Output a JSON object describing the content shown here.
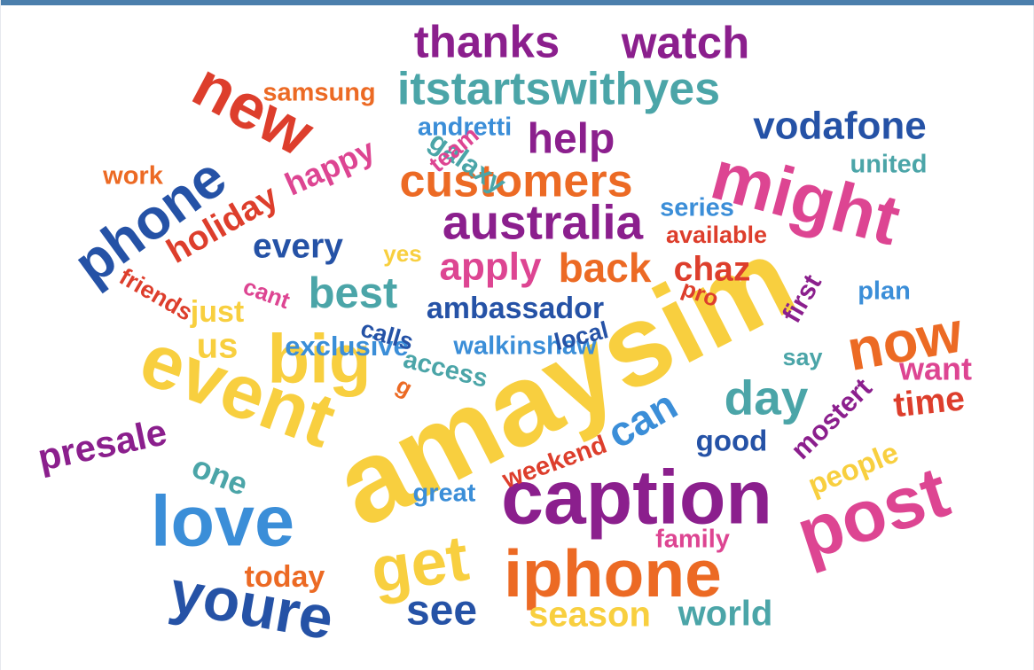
{
  "chart_data": {
    "type": "wordcloud",
    "palette": {
      "yellow": "#f8cf3f",
      "purple": "#8b1f8d",
      "teal": "#4ba5a8",
      "red": "#dd3e2c",
      "pink": "#dd4592",
      "orange": "#ec6a24",
      "blue": "#3b8ed8",
      "navy": "#2552a6"
    },
    "words": [
      {
        "text": "amaysim",
        "weight": 100,
        "color": "#f8cf3f",
        "rotate": -27
      },
      {
        "text": "event",
        "weight": 66,
        "color": "#f8cf3f",
        "rotate": 20
      },
      {
        "text": "caption",
        "weight": 66,
        "color": "#8b1f8d",
        "rotate": 0
      },
      {
        "text": "post",
        "weight": 63,
        "color": "#dd4592",
        "rotate": -18
      },
      {
        "text": "love",
        "weight": 62,
        "color": "#3b8ed8",
        "rotate": 0
      },
      {
        "text": "might",
        "weight": 61,
        "color": "#dd4592",
        "rotate": 15
      },
      {
        "text": "big",
        "weight": 60,
        "color": "#f8cf3f",
        "rotate": 0
      },
      {
        "text": "iphone",
        "weight": 58,
        "color": "#ec6a24",
        "rotate": 0
      },
      {
        "text": "get",
        "weight": 56,
        "color": "#f8cf3f",
        "rotate": -8
      },
      {
        "text": "new",
        "weight": 55,
        "color": "#dd3e2c",
        "rotate": 28
      },
      {
        "text": "youre",
        "weight": 52,
        "color": "#2552a6",
        "rotate": 10
      },
      {
        "text": "now",
        "weight": 50,
        "color": "#ec6a24",
        "rotate": -10
      },
      {
        "text": "phone",
        "weight": 49,
        "color": "#2552a6",
        "rotate": -36
      },
      {
        "text": "australia",
        "weight": 42,
        "color": "#8b1f8d",
        "rotate": 0
      },
      {
        "text": "day",
        "weight": 42,
        "color": "#4ba5a8",
        "rotate": 0
      },
      {
        "text": "itstartswithyes",
        "weight": 40,
        "color": "#4ba5a8",
        "rotate": 0
      },
      {
        "text": "customers",
        "weight": 40,
        "color": "#ec6a24",
        "rotate": 0
      },
      {
        "text": "watch",
        "weight": 39,
        "color": "#8b1f8d",
        "rotate": 0
      },
      {
        "text": "thanks",
        "weight": 39,
        "color": "#8b1f8d",
        "rotate": 0
      },
      {
        "text": "best",
        "weight": 38,
        "color": "#4ba5a8",
        "rotate": 0
      },
      {
        "text": "help",
        "weight": 37,
        "color": "#8b1f8d",
        "rotate": 0
      },
      {
        "text": "see",
        "weight": 37,
        "color": "#2552a6",
        "rotate": 0
      },
      {
        "text": "can",
        "weight": 36,
        "color": "#3b8ed8",
        "rotate": -30
      },
      {
        "text": "back",
        "weight": 35,
        "color": "#ec6a24",
        "rotate": 0
      },
      {
        "text": "apply",
        "weight": 34,
        "color": "#dd4592",
        "rotate": 0
      },
      {
        "text": "vodafone",
        "weight": 34,
        "color": "#2552a6",
        "rotate": 0
      },
      {
        "text": "presale",
        "weight": 32,
        "color": "#8b1f8d",
        "rotate": -12
      },
      {
        "text": "season",
        "weight": 31,
        "color": "#f8cf3f",
        "rotate": 0
      },
      {
        "text": "world",
        "weight": 31,
        "color": "#4ba5a8",
        "rotate": 0
      },
      {
        "text": "us",
        "weight": 31,
        "color": "#f8cf3f",
        "rotate": 0
      },
      {
        "text": "holiday",
        "weight": 30,
        "color": "#dd3e2c",
        "rotate": -30
      },
      {
        "text": "every",
        "weight": 30,
        "color": "#2552a6",
        "rotate": 0
      },
      {
        "text": "chaz",
        "weight": 30,
        "color": "#dd3e2c",
        "rotate": 0
      },
      {
        "text": "time",
        "weight": 30,
        "color": "#dd3e2c",
        "rotate": -6
      },
      {
        "text": "one",
        "weight": 28,
        "color": "#4ba5a8",
        "rotate": 22
      },
      {
        "text": "want",
        "weight": 28,
        "color": "#dd4592",
        "rotate": 0
      },
      {
        "text": "happy",
        "weight": 28,
        "color": "#dd4592",
        "rotate": -24
      },
      {
        "text": "ambassador",
        "weight": 26,
        "color": "#2552a6",
        "rotate": 0
      },
      {
        "text": "today",
        "weight": 26,
        "color": "#ec6a24",
        "rotate": 0
      },
      {
        "text": "just",
        "weight": 26,
        "color": "#f8cf3f",
        "rotate": 0
      },
      {
        "text": "good",
        "weight": 25,
        "color": "#2552a6",
        "rotate": 0
      },
      {
        "text": "people",
        "weight": 25,
        "color": "#f8cf3f",
        "rotate": -22
      },
      {
        "text": "mostert",
        "weight": 24,
        "color": "#8b1f8d",
        "rotate": -45
      },
      {
        "text": "exclusive",
        "weight": 24,
        "color": "#3b8ed8",
        "rotate": 0
      },
      {
        "text": "galaxy",
        "weight": 24,
        "color": "#4ba5a8",
        "rotate": 35
      },
      {
        "text": "first",
        "weight": 23,
        "color": "#8b1f8d",
        "rotate": -60
      },
      {
        "text": "great",
        "weight": 22,
        "color": "#3b8ed8",
        "rotate": 0
      },
      {
        "text": "series",
        "weight": 22,
        "color": "#3b8ed8",
        "rotate": 0
      },
      {
        "text": "andretti",
        "weight": 22,
        "color": "#3b8ed8",
        "rotate": 0
      },
      {
        "text": "access",
        "weight": 22,
        "color": "#4ba5a8",
        "rotate": 14
      },
      {
        "text": "walkinshaw",
        "weight": 22,
        "color": "#3b8ed8",
        "rotate": 0
      },
      {
        "text": "united",
        "weight": 22,
        "color": "#4ba5a8",
        "rotate": 0
      },
      {
        "text": "plan",
        "weight": 22,
        "color": "#3b8ed8",
        "rotate": 0
      },
      {
        "text": "weekend",
        "weight": 22,
        "color": "#dd3e2c",
        "rotate": -20
      },
      {
        "text": "work",
        "weight": 22,
        "color": "#ec6a24",
        "rotate": 0
      },
      {
        "text": "samsung",
        "weight": 22,
        "color": "#ec6a24",
        "rotate": 0
      },
      {
        "text": "family",
        "weight": 22,
        "color": "#dd4592",
        "rotate": 0
      },
      {
        "text": "available",
        "weight": 21,
        "color": "#dd3e2c",
        "rotate": 0
      },
      {
        "text": "calls",
        "weight": 21,
        "color": "#2552a6",
        "rotate": 16
      },
      {
        "text": "local",
        "weight": 21,
        "color": "#2552a6",
        "rotate": -14
      },
      {
        "text": "say",
        "weight": 21,
        "color": "#4ba5a8",
        "rotate": 0
      },
      {
        "text": "team",
        "weight": 21,
        "color": "#dd4592",
        "rotate": -40
      },
      {
        "text": "friends",
        "weight": 21,
        "color": "#dd3e2c",
        "rotate": 30
      },
      {
        "text": "cant",
        "weight": 20,
        "color": "#dd4592",
        "rotate": 20
      },
      {
        "text": "yes",
        "weight": 20,
        "color": "#f8cf3f",
        "rotate": 0
      },
      {
        "text": "pro",
        "weight": 20,
        "color": "#dd3e2c",
        "rotate": 20
      },
      {
        "text": "g",
        "weight": 20,
        "color": "#ec6a24",
        "rotate": 28
      }
    ]
  }
}
